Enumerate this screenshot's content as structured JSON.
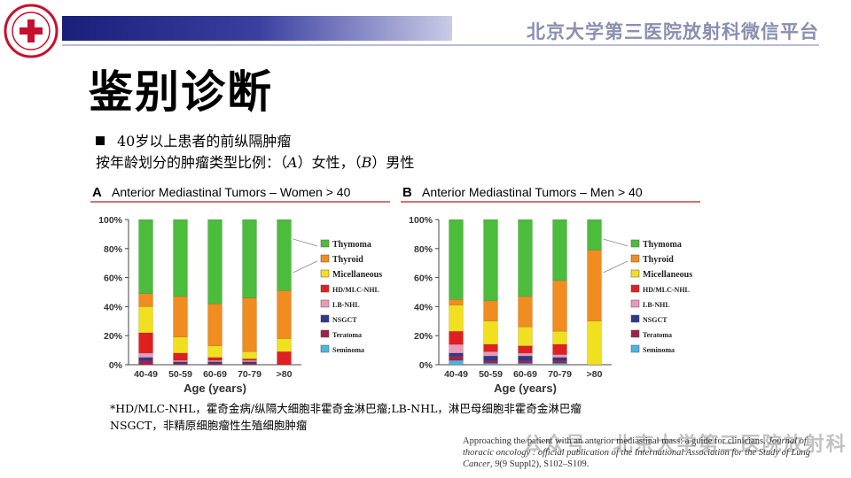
{
  "header": {
    "title": "北京大学第三医院放射科微信平台"
  },
  "logo": {
    "icon": "hospital-seal-icon",
    "color": "#c8102e"
  },
  "main": {
    "title": "鉴别诊断",
    "bullet_text": "40岁以上患者的前纵隔肿瘤",
    "sub_pre": "按年龄划分的肿瘤类型比例：（",
    "sub_a": "A",
    "sub_mid": "）女性，（",
    "sub_b": "B",
    "sub_post": "）男性"
  },
  "footnote": {
    "line1": "*HD/MLC-NHL，霍奇金病/纵隔大细胞非霍奇金淋巴瘤;LB-NHL，淋巴母细胞非霍奇金淋巴瘤",
    "line2": "NSGCT，非精原细胞瘤性生殖细胞肿瘤"
  },
  "reference": {
    "plain1": "Approaching the patient with an anterior mediastinal mass: a guide for clinicians.",
    "journal": "Journal of thoracic oncology : official publication of the International Association for the Study of Lung Cancer",
    "plain2": ", ",
    "volume": "9",
    "issue": "(9 Suppl2), S102–S109."
  },
  "watermark": {
    "text": "公众号 · 北京大学第三医院放射科"
  },
  "chart_data": [
    {
      "type": "bar",
      "stacked": true,
      "panel": "A",
      "title": "Anterior Mediastinal Tumors – Women > 40",
      "xlabel": "Age  (years)",
      "categories": [
        "40-49",
        "50-59",
        "60-69",
        "70-79",
        ">80"
      ],
      "yticks": [
        "0%",
        "20%",
        "40%",
        "60%",
        "80%",
        "100%"
      ],
      "ylim": [
        0,
        100
      ],
      "series": [
        {
          "name": "Seminoma",
          "color": "#4fb3e0",
          "values": [
            0,
            0,
            0,
            0,
            0
          ]
        },
        {
          "name": "Teratoma",
          "color": "#a0224a",
          "values": [
            3,
            1,
            1,
            1,
            0
          ]
        },
        {
          "name": "NSGCT",
          "color": "#2a3a8c",
          "values": [
            2,
            1,
            1,
            1,
            0
          ]
        },
        {
          "name": "LB-NHL",
          "color": "#e89ab8",
          "values": [
            3,
            1,
            1,
            1,
            0
          ]
        },
        {
          "name": "HD/MLC-NHL",
          "color": "#e02020",
          "values": [
            14,
            5,
            2,
            1,
            9
          ]
        },
        {
          "name": "Micellaneous",
          "color": "#f0e020",
          "values": [
            18,
            11,
            8,
            5,
            9
          ]
        },
        {
          "name": "Thyroid",
          "color": "#f08c20",
          "values": [
            9,
            28,
            29,
            37,
            33
          ]
        },
        {
          "name": "Thymoma",
          "color": "#4cbc3c",
          "values": [
            51,
            53,
            58,
            54,
            49
          ]
        }
      ]
    },
    {
      "type": "bar",
      "stacked": true,
      "panel": "B",
      "title": "Anterior Mediastinal Tumors – Men > 40",
      "xlabel": "Age  (years)",
      "categories": [
        "40-49",
        "50-59",
        "60-69",
        "70-79",
        ">80"
      ],
      "yticks": [
        "0%",
        "20%",
        "40%",
        "60%",
        "80%",
        "100%"
      ],
      "ylim": [
        0,
        100
      ],
      "series": [
        {
          "name": "Seminoma",
          "color": "#4fb3e0",
          "values": [
            3,
            1,
            1,
            1,
            0
          ]
        },
        {
          "name": "Teratoma",
          "color": "#a0224a",
          "values": [
            3,
            2,
            2,
            2,
            0
          ]
        },
        {
          "name": "NSGCT",
          "color": "#2a3a8c",
          "values": [
            2,
            3,
            3,
            2,
            0
          ]
        },
        {
          "name": "LB-NHL",
          "color": "#e89ab8",
          "values": [
            6,
            3,
            2,
            2,
            0
          ]
        },
        {
          "name": "HD/MLC-NHL",
          "color": "#e02020",
          "values": [
            9,
            5,
            5,
            7,
            0
          ]
        },
        {
          "name": "Micellaneous",
          "color": "#f0e020",
          "values": [
            18,
            16,
            13,
            9,
            30
          ]
        },
        {
          "name": "Thyroid",
          "color": "#f08c20",
          "values": [
            4,
            14,
            21,
            35,
            49
          ]
        },
        {
          "name": "Thymoma",
          "color": "#4cbc3c",
          "values": [
            55,
            56,
            53,
            42,
            21
          ]
        }
      ]
    }
  ]
}
